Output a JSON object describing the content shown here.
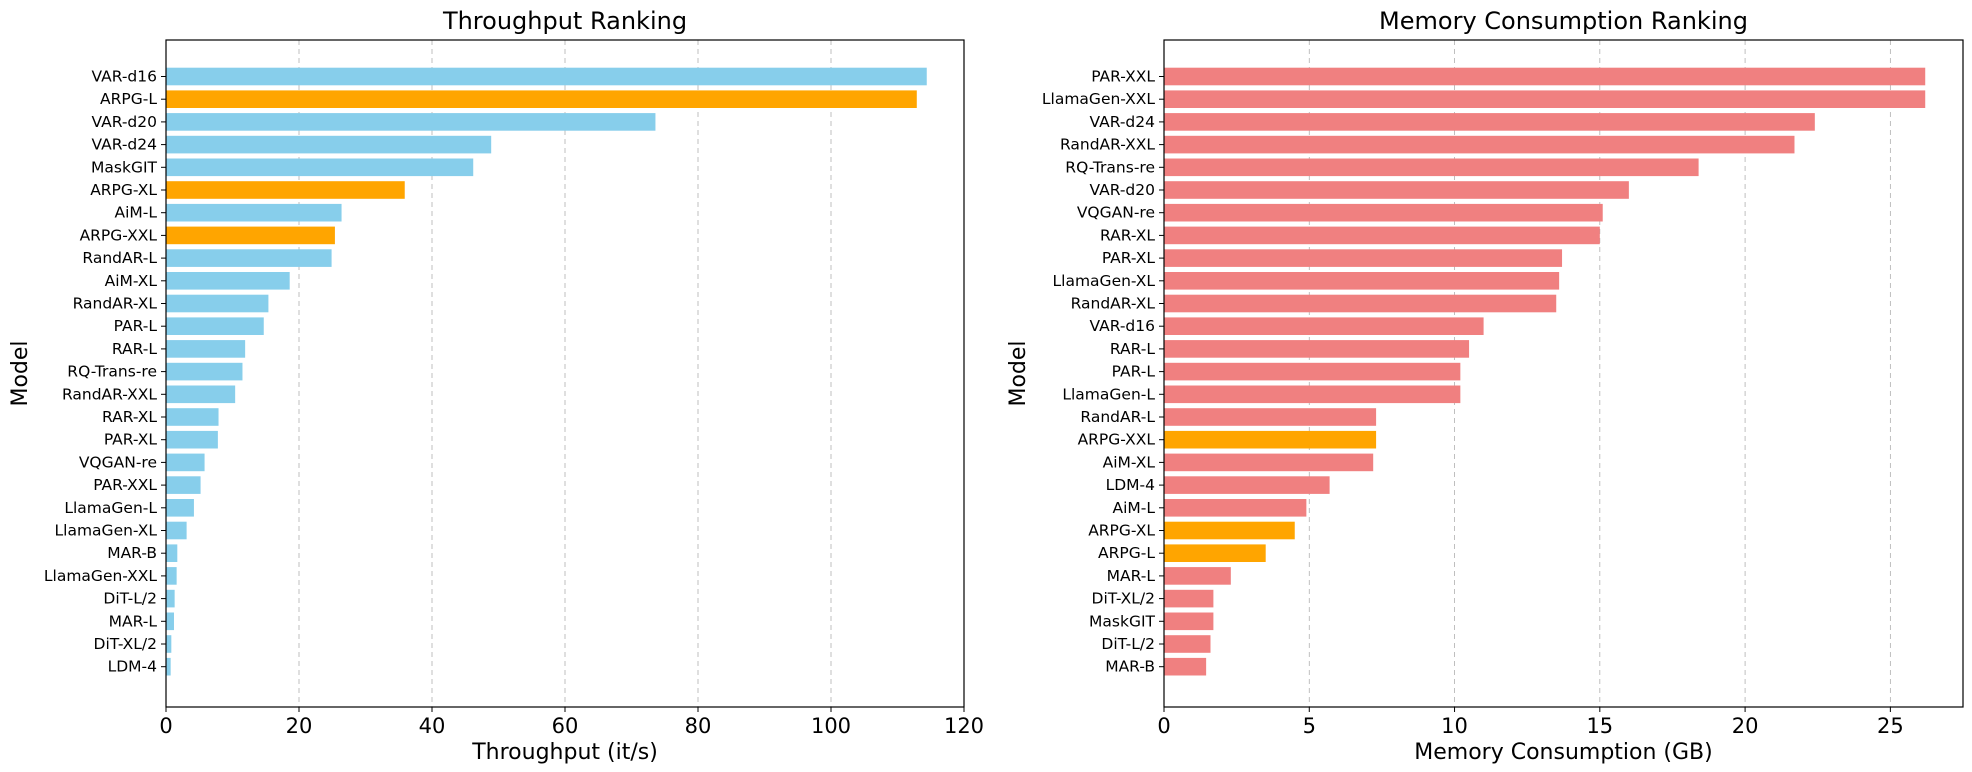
{
  "chart_data": [
    {
      "type": "bar",
      "orientation": "horizontal",
      "title": "Throughput Ranking",
      "xlabel": "Throughput (it/s)",
      "ylabel": "Model",
      "xlim": [
        0,
        120
      ],
      "xticks": [
        0,
        20,
        40,
        60,
        80,
        100,
        120
      ],
      "grid": "x dashed",
      "categories": [
        "VAR-d16",
        "ARPG-L",
        "VAR-d20",
        "VAR-d24",
        "MaskGIT",
        "ARPG-XL",
        "AiM-L",
        "ARPG-XXL",
        "RandAR-L",
        "AiM-XL",
        "RandAR-XL",
        "PAR-L",
        "RAR-L",
        "RQ-Trans-re",
        "RandAR-XXL",
        "RAR-XL",
        "PAR-XL",
        "VQGAN-re",
        "PAR-XXL",
        "LlamaGen-L",
        "LlamaGen-XL",
        "MAR-B",
        "LlamaGen-XXL",
        "DiT-L/2",
        "MAR-L",
        "DiT-XL/2",
        "LDM-4"
      ],
      "values": [
        114.4,
        112.9,
        73.6,
        48.9,
        46.2,
        35.9,
        26.4,
        25.4,
        24.9,
        18.6,
        15.4,
        14.7,
        11.9,
        11.5,
        10.4,
        7.9,
        7.8,
        5.8,
        5.2,
        4.2,
        3.1,
        1.7,
        1.6,
        1.3,
        1.2,
        0.8,
        0.7
      ],
      "highlight_categories": [
        "ARPG-L",
        "ARPG-XL",
        "ARPG-XXL"
      ],
      "colors": {
        "default": "#87CEEB",
        "highlight": "#FFA500"
      }
    },
    {
      "type": "bar",
      "orientation": "horizontal",
      "title": "Memory Consumption Ranking",
      "xlabel": "Memory Consumption (GB)",
      "ylabel": "Model",
      "xlim": [
        0,
        27.5
      ],
      "xticks": [
        0,
        5,
        10,
        15,
        20,
        25
      ],
      "grid": "x dashed",
      "categories": [
        "PAR-XXL",
        "LlamaGen-XXL",
        "VAR-d24",
        "RandAR-XXL",
        "RQ-Trans-re",
        "VAR-d20",
        "VQGAN-re",
        "RAR-XL",
        "PAR-XL",
        "LlamaGen-XL",
        "RandAR-XL",
        "VAR-d16",
        "RAR-L",
        "PAR-L",
        "LlamaGen-L",
        "RandAR-L",
        "ARPG-XXL",
        "AiM-XL",
        "LDM-4",
        "AiM-L",
        "ARPG-XL",
        "ARPG-L",
        "MAR-L",
        "DiT-XL/2",
        "MaskGIT",
        "DiT-L/2",
        "MAR-B"
      ],
      "values": [
        26.2,
        26.2,
        22.4,
        21.7,
        18.4,
        16.0,
        15.1,
        15.0,
        13.7,
        13.6,
        13.5,
        11.0,
        10.5,
        10.2,
        10.2,
        7.3,
        7.3,
        7.2,
        5.7,
        4.9,
        4.5,
        3.5,
        2.3,
        1.7,
        1.7,
        1.6,
        1.45
      ],
      "highlight_categories": [
        "ARPG-XXL",
        "ARPG-XL",
        "ARPG-L"
      ],
      "colors": {
        "default": "#F08080",
        "highlight": "#FFA500"
      }
    }
  ]
}
